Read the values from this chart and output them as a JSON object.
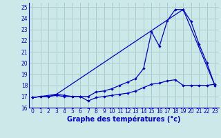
{
  "title": "Graphe des températures (°c)",
  "bg_color": "#cce8e8",
  "grid_color": "#aacccc",
  "line_color": "#0000cc",
  "xlim": [
    -0.5,
    23.5
  ],
  "ylim": [
    16,
    25.4
  ],
  "xticks": [
    0,
    1,
    2,
    3,
    4,
    5,
    6,
    7,
    8,
    9,
    10,
    11,
    12,
    13,
    14,
    15,
    16,
    17,
    18,
    19,
    20,
    21,
    22,
    23
  ],
  "yticks": [
    16,
    17,
    18,
    19,
    20,
    21,
    22,
    23,
    24,
    25
  ],
  "series1_x": [
    0,
    1,
    2,
    3,
    4,
    5,
    6,
    7,
    8,
    9,
    10,
    11,
    12,
    13,
    14,
    15,
    16,
    17,
    18,
    19,
    20,
    21,
    22,
    23
  ],
  "series1_y": [
    16.9,
    17.0,
    17.0,
    17.1,
    17.0,
    17.0,
    17.0,
    16.6,
    16.9,
    17.0,
    17.1,
    17.2,
    17.3,
    17.5,
    17.8,
    18.1,
    18.2,
    18.4,
    18.5,
    18.0,
    18.0,
    18.0,
    18.0,
    18.1
  ],
  "series2_x": [
    0,
    1,
    2,
    3,
    4,
    5,
    6,
    7,
    8,
    9,
    10,
    11,
    12,
    13,
    14,
    15,
    16,
    17,
    18,
    19,
    20,
    21,
    22,
    23
  ],
  "series2_y": [
    16.9,
    17.0,
    17.0,
    17.2,
    17.1,
    17.0,
    17.0,
    17.0,
    17.4,
    17.5,
    17.7,
    18.0,
    18.3,
    18.6,
    19.5,
    22.8,
    21.5,
    23.8,
    24.8,
    24.8,
    23.7,
    21.7,
    20.0,
    18.0
  ],
  "series3_x": [
    0,
    3,
    19,
    23
  ],
  "series3_y": [
    16.9,
    17.2,
    24.8,
    18.0
  ],
  "tick_fontsize": 5.5,
  "xlabel_fontsize": 7.0
}
